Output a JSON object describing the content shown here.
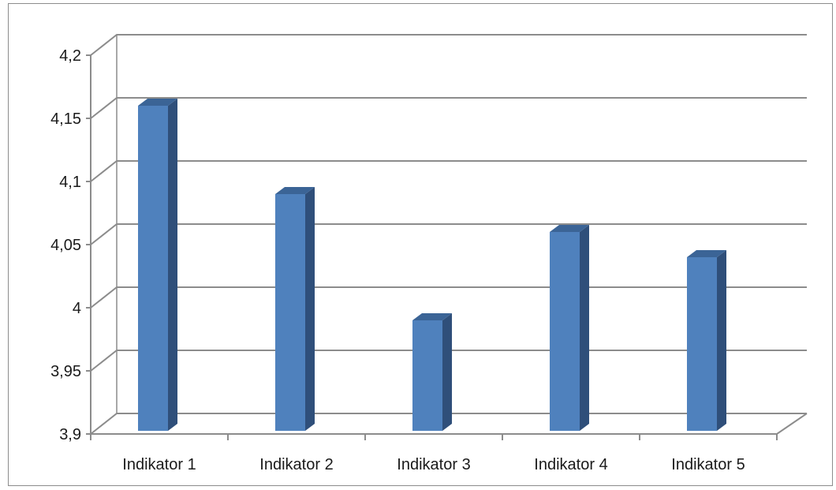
{
  "chart_data": {
    "type": "bar",
    "categories": [
      "Indikator 1",
      "Indikator 2",
      "Indikator 3",
      "Indikator 4",
      "Indikator 5"
    ],
    "values": [
      4.16,
      4.09,
      3.99,
      4.06,
      4.04
    ],
    "ylim": [
      3.9,
      4.2
    ],
    "yticks": [
      "3,9",
      "3,95",
      "4",
      "4,05",
      "4,1",
      "4,15",
      "4,2"
    ],
    "ytick_values": [
      3.9,
      3.95,
      4.0,
      4.05,
      4.1,
      4.15,
      4.2
    ],
    "grid": true,
    "legend": "none",
    "three_d": true,
    "colors": {
      "bar_front": "#4f81bd",
      "bar_side": "#2f4f7a",
      "bar_top": "#3b6496",
      "grid": "#8c8c8c",
      "axis": "#8c8c8c"
    }
  }
}
